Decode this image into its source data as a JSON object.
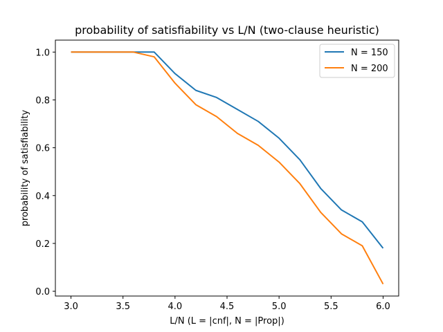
{
  "chart_data": {
    "type": "line",
    "title": "probability of satisfiability vs L/N (two-clause heuristic)",
    "xlabel": "L/N (L = |cnf|, N = |Prop|)",
    "ylabel": "probability of satisfiability",
    "xlim": [
      2.85,
      6.15
    ],
    "ylim": [
      -0.02,
      1.05
    ],
    "xticks": [
      3.0,
      3.5,
      4.0,
      4.5,
      5.0,
      5.5,
      6.0
    ],
    "xtick_labels": [
      "3.0",
      "3.5",
      "4.0",
      "4.5",
      "5.0",
      "5.5",
      "6.0"
    ],
    "yticks": [
      0.0,
      0.2,
      0.4,
      0.6,
      0.8,
      1.0
    ],
    "ytick_labels": [
      "0.0",
      "0.2",
      "0.4",
      "0.6",
      "0.8",
      "1.0"
    ],
    "grid": false,
    "legend_position": "top-right",
    "x": [
      3.0,
      3.2,
      3.4,
      3.6,
      3.8,
      4.0,
      4.2,
      4.4,
      4.6,
      4.8,
      5.0,
      5.2,
      5.4,
      5.6,
      5.8,
      6.0
    ],
    "series": [
      {
        "name": "N = 150",
        "color": "#1f77b4",
        "values": [
          1.0,
          1.0,
          1.0,
          1.0,
          1.0,
          0.91,
          0.84,
          0.81,
          0.76,
          0.71,
          0.64,
          0.55,
          0.43,
          0.34,
          0.29,
          0.18
        ]
      },
      {
        "name": "N = 200",
        "color": "#ff7f0e",
        "values": [
          1.0,
          1.0,
          1.0,
          1.0,
          0.98,
          0.87,
          0.78,
          0.73,
          0.66,
          0.61,
          0.54,
          0.45,
          0.33,
          0.24,
          0.19,
          0.03
        ]
      }
    ]
  }
}
